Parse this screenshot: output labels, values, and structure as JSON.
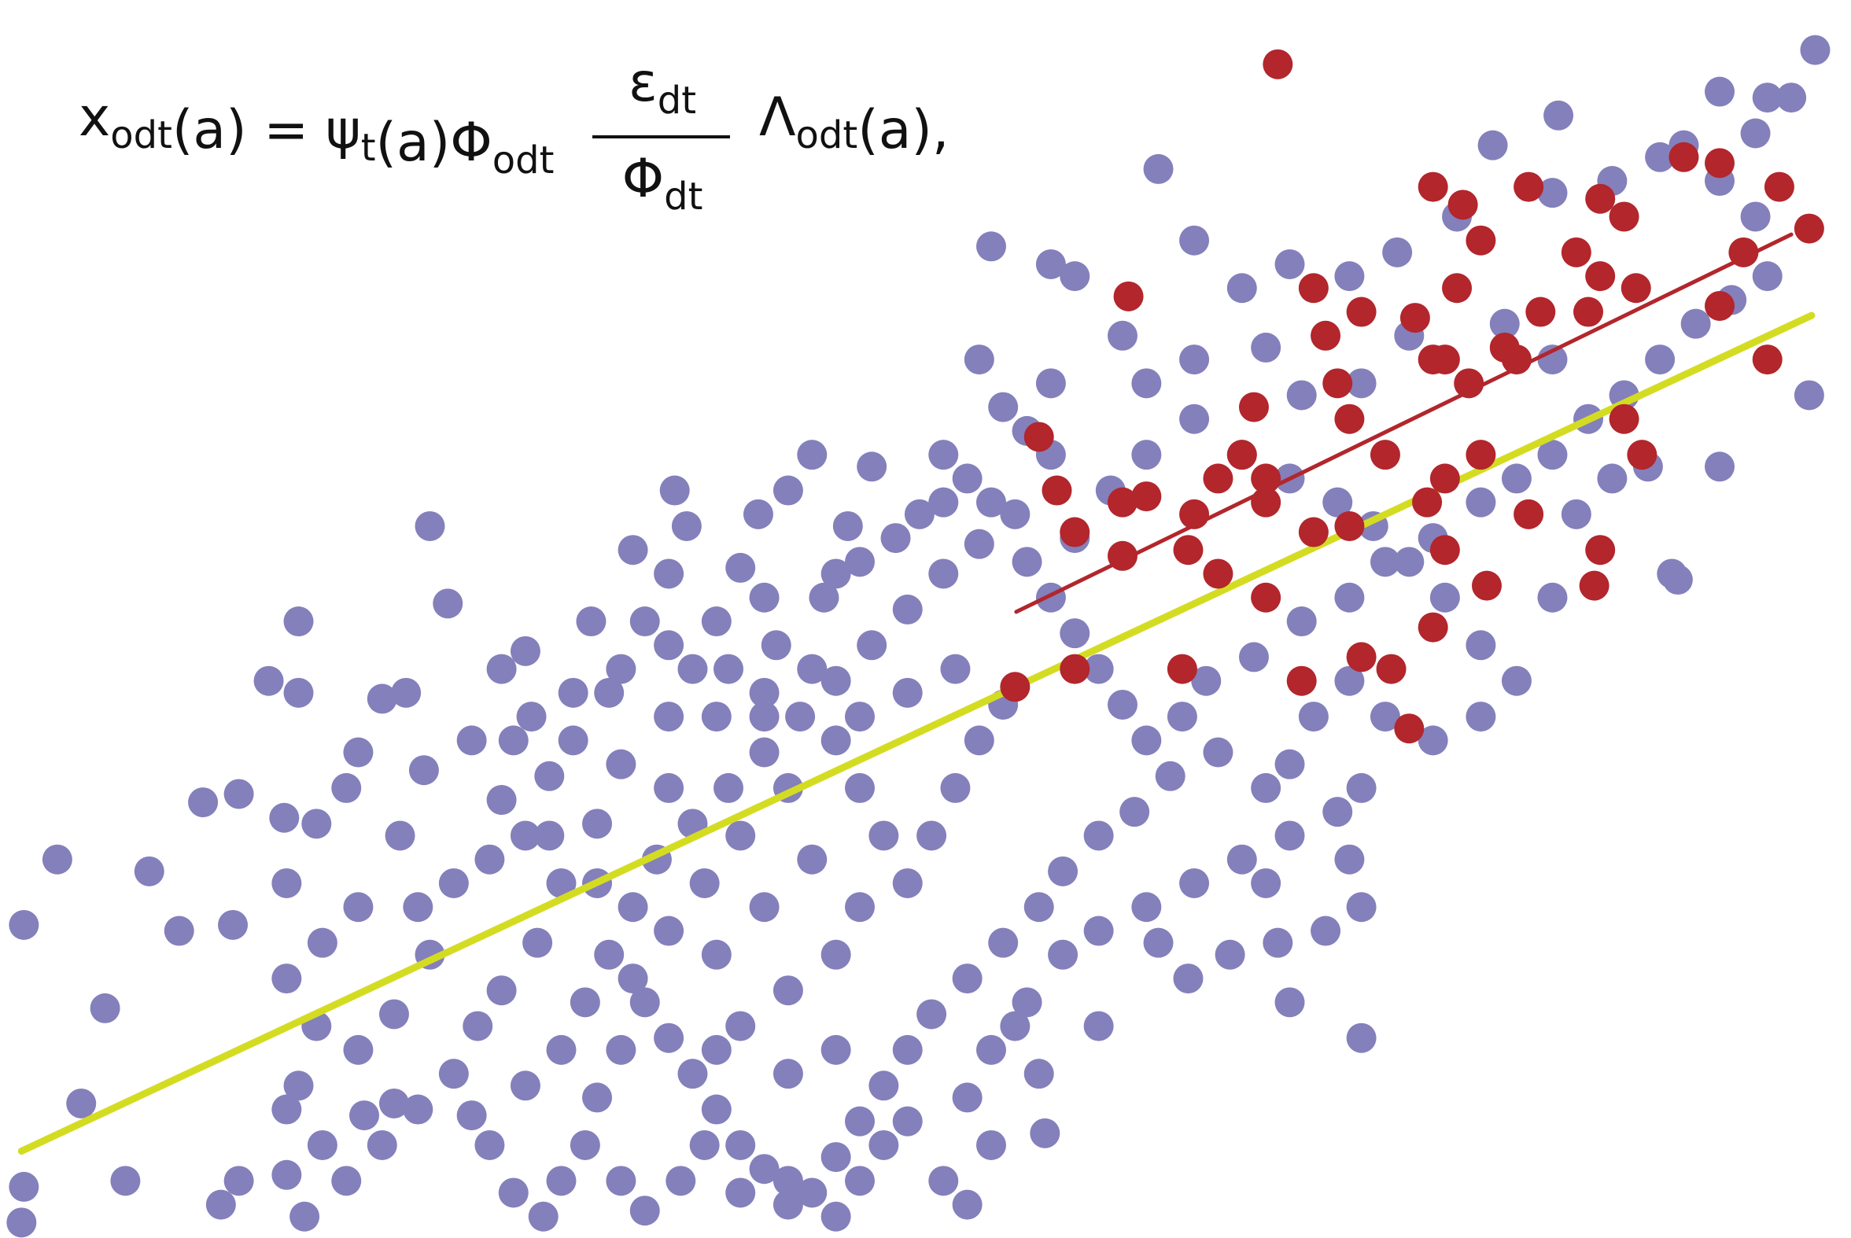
{
  "chart_data": {
    "type": "scatter",
    "formula": {
      "left": [
        {
          "text": "x",
          "sub": "odt"
        },
        {
          "text": "(a) = ψ",
          "sub": "t"
        },
        {
          "text": "(a)Φ",
          "sub": "odt"
        }
      ],
      "numerator": {
        "text": "ε",
        "sub": "dt"
      },
      "denominator": {
        "text": "Φ",
        "sub": "dt"
      },
      "right": [
        {
          "text": "Λ",
          "sub": "odt"
        },
        {
          "text": "(a),"
        }
      ]
    },
    "xlim": [
      0,
      155
    ],
    "ylim": [
      0,
      104
    ],
    "series": [
      {
        "color": "#8480bb",
        "x": [
          4.8,
          2.0,
          8.8,
          6.8,
          2.0,
          1.8,
          10.5,
          12.5,
          15.0,
          17.0,
          20.0,
          22.5,
          25.0,
          24.0,
          19.5,
          25.0,
          23.8,
          26.5,
          30.0,
          32.0,
          29.0,
          34.0,
          36.0,
          37.5,
          39.5,
          42.0,
          35.5,
          33.5,
          30.0,
          27.0,
          24.0,
          26.5,
          30.0,
          33.0,
          36.0,
          35.0,
          38.0,
          41.0,
          44.0,
          46.0,
          48.0,
          44.5,
          42.0,
          44.0,
          49.5,
          51.0,
          54.0,
          56.5,
          57.5,
          63.5,
          66.0,
          62.0,
          68.0,
          73.0,
          79.0,
          77.0,
          72.0,
          69.0,
          65.0,
          60.0,
          58.0,
          56.0,
          52.0,
          50.0,
          47.0,
          45.0,
          42.0,
          40.0,
          38.0,
          35.0,
          32.0,
          25.0,
          24.0,
          27.0,
          29.0,
          25.5,
          20.0,
          18.5,
          24.0,
          30.5,
          33.0,
          41.0,
          39.5,
          44.0,
          47.0,
          49.0,
          51.0,
          53.0,
          55.0,
          58.0,
          61.0,
          64.0,
          67.0,
          70.0,
          73.0,
          76.0,
          79.0,
          82.0,
          83.0,
          81.0,
          85.0,
          86.0,
          88.0,
          90.0,
          92.0,
          94.0,
          96.0,
          98.0,
          95.0,
          92.0,
          89.0,
          87.0,
          84.0,
          81.0,
          78.0,
          76.0,
          74.0,
          72.0,
          70.0,
          68.0,
          66.0,
          64.0,
          62.0,
          60.0,
          58.0,
          56.0,
          54.0,
          52.0,
          50.0,
          49.0,
          47.0,
          43.0,
          45.5,
          54.0,
          57.0,
          59.0,
          52.0,
          62.0,
          66.0,
          70.0,
          72.0,
          74.0,
          76.0,
          79.0,
          81.0,
          83.0,
          81.0,
          83.0,
          85.0,
          87.5,
          87.0,
          86.0,
          89.0,
          92.0,
          96.0,
          100.0,
          104.0,
          108.0,
          112.0,
          106.0,
          102.0,
          99.0,
          101.0,
          105.0,
          109.0,
          113.0,
          116.0,
          120.0,
          124.0,
          127.0,
          130.0,
          133.0,
          136.0,
          139.0,
          142.0,
          145.0,
          148.0,
          147.0,
          144.0,
          141.0,
          147.0,
          150.0,
          152.0,
          148.0,
          144.0,
          139.0,
          135.0,
          130.0,
          130.5,
          125.0,
          122.0,
          117.0,
          113.0,
          108.0,
          104.0,
          100.0,
          97.0,
          90.0,
          88.0,
          83.0,
          82.0,
          84.0,
          88.0,
          94.0,
          96.0,
          100.0,
          104.0,
          108.0,
          112.0,
          115.0,
          118.0,
          121.0,
          124.0,
          127.0,
          124.0,
          120.0,
          116.0,
          113.0,
          110.0,
          108.0,
          114.0,
          113.0,
          114.0,
          111.0,
          107.0,
          106.0,
          103.0,
          99.5,
          97.0,
          92.0,
          108.0,
          114.0,
          130.0,
          132.0,
          135.0,
          140.0,
          144.0,
          138.0,
          130.0,
          126.0,
          118.0,
          114.0,
          109.0,
          106.0,
          100.0,
          96.0,
          93.0,
          90.0,
          88.0,
          86.0,
          79.0,
          75.0,
          71.0,
          70.0,
          64.0,
          61.0,
          64.0,
          68.0,
          70.0,
          72.0,
          74.0,
          76.0,
          78.0,
          80.0,
          82.0,
          84.0,
          80.0,
          76.0,
          72.0,
          66.0,
          62.0,
          59.0,
          56.0,
          53.0,
          60.0,
          64.0,
          68.0,
          72.0,
          70.0,
          66.0,
          62.0,
          60.0,
          66.0,
          70.0,
          56.0,
          50.0,
          46.0,
          43.0,
          48.0,
          52.0,
          56.0,
          60.0,
          64.0,
          56.0,
          53.0,
          151.5,
          140.5
        ],
        "values": [
          31.8,
          26.3,
          19.3,
          11.3,
          4.3,
          1.3,
          4.8,
          30.8,
          25.8,
          36.6,
          37.3,
          46.8,
          51.8,
          29.8,
          26.3,
          45.8,
          35.3,
          34.8,
          40.8,
          45.3,
          37.8,
          45.8,
          59.8,
          53.3,
          41.8,
          36.8,
          39.3,
          33.8,
          27.8,
          24.8,
          21.8,
          17.8,
          15.8,
          18.8,
          23.8,
          27.8,
          29.8,
          31.8,
          33.8,
          38.8,
          41.8,
          43.8,
          47.8,
          49.3,
          51.8,
          45.8,
          51.8,
          62.8,
          59.8,
          60.8,
          62.8,
          56.3,
          65.8,
          64.8,
          65.8,
          60.8,
          56.8,
          53.8,
          49.8,
          51.8,
          47.8,
          43.8,
          39.8,
          34.8,
          29.8,
          24.8,
          20.8,
          17.8,
          13.8,
          10.8,
          7.8,
          12.8,
          10.8,
          7.8,
          4.8,
          1.8,
          4.8,
          2.8,
          5.3,
          10.3,
          11.3,
          7.8,
          10.3,
          12.8,
          15.8,
          19.8,
          23.8,
          27.8,
          31.8,
          34.8,
          37.8,
          40.8,
          43.8,
          46.8,
          49.8,
          52.8,
          55.8,
          58.3,
          61.8,
          63.8,
          60.8,
          56.8,
          53.8,
          50.8,
          47.8,
          44.8,
          41.8,
          38.8,
          35.8,
          33.8,
          30.8,
          27.8,
          24.8,
          21.8,
          18.8,
          15.8,
          12.8,
          9.8,
          6.8,
          3.8,
          4.8,
          5.8,
          7.8,
          10.8,
          13.8,
          16.8,
          19.8,
          15.8,
          11.8,
          7.8,
          4.8,
          3.8,
          1.8,
          2.3,
          4.8,
          7.8,
          4.8,
          3.8,
          2.8,
          1.8,
          4.8,
          7.8,
          9.8,
          4.8,
          2.8,
          7.8,
          11.8,
          15.8,
          17.8,
          8.8,
          13.8,
          19.8,
          23.8,
          25.8,
          27.8,
          29.8,
          31.8,
          33.8,
          35.8,
          37.8,
          40.8,
          43.8,
          46.8,
          48.8,
          51.8,
          53.8,
          56.8,
          58.8,
          61.8,
          63.8,
          65.8,
          68.8,
          70.8,
          73.8,
          76.8,
          78.8,
          80.8,
          85.8,
          88.8,
          91.8,
          92.8,
          95.8,
          99.8,
          95.8,
          96.3,
          90.8,
          88.8,
          87.8,
          94.3,
          91.8,
          85.8,
          82.8,
          80.8,
          81.8,
          79.8,
          83.8,
          89.8,
          80.8,
          81.8,
          83.3,
          73.8,
          69.8,
          71.8,
          75.8,
          71.8,
          68.8,
          65.8,
          63.8,
          61.8,
          59.8,
          56.8,
          53.8,
          49.8,
          46.8,
          43.8,
          41.8,
          43.8,
          46.8,
          43.8,
          39.8,
          37.8,
          31.8,
          27.8,
          25.8,
          24.8,
          29.8,
          23.8,
          21.8,
          24.8,
          17.8,
          19.8,
          16.8,
          53.8,
          60.8,
          63.8,
          55.8,
          64.8,
          64.8,
          73.8,
          76.8,
          75.8,
          71.8,
          70.8,
          74.8,
          73.8,
          65.8,
          62.8,
          58.8,
          65.8,
          67.8,
          61.8,
          58.8,
          59.8,
          55.8,
          53.8,
          47.8,
          45.8,
          47.8,
          41.8,
          37.8,
          33.8,
          29.8,
          33.8,
          37.8,
          41.8,
          44.8,
          47.8,
          45.8,
          43.8,
          37.8,
          33.8,
          29.8,
          25.8,
          21.8,
          23.8,
          27.8,
          31.8,
          27.8,
          23.8,
          20.8,
          17.8,
          15.8,
          13.8,
          15.8,
          37.8,
          29.8,
          33.8,
          41.8,
          45.8,
          47.8,
          49.8,
          43.8,
          43.8,
          55.8,
          57.8,
          70.8,
          55.3
        ]
      },
      {
        "color": "#b2262c",
        "x": [
          107.0,
          120.0,
          122.5,
          128.0,
          134.0,
          136.0,
          141.0,
          144.0,
          149.0,
          151.5,
          146.0,
          144.0,
          148.0,
          132.0,
          134.0,
          137.0,
          133.0,
          136.0,
          137.5,
          110.0,
          122.0,
          118.5,
          114.0,
          111.0,
          112.0,
          120.0,
          126.0,
          123.0,
          124.0,
          129.0,
          127.0,
          94.5,
          105.0,
          113.0,
          104.0,
          102.0,
          106.0,
          100.0,
          87.0,
          88.5,
          94.0,
          96.0,
          90.0,
          94.0,
          99.5,
          102.0,
          106.0,
          110.0,
          113.0,
          116.0,
          119.5,
          121.0,
          124.0,
          128.0,
          121.0,
          124.5,
          120.0,
          114.0,
          116.5,
          118.0,
          109.0,
          99.0,
          90.0,
          85.0,
          134.0,
          133.5,
          106.0,
          121.0
        ],
        "values": [
          98.6,
          88.3,
          86.8,
          88.3,
          87.3,
          85.8,
          90.8,
          90.3,
          88.3,
          84.8,
          82.8,
          78.3,
          73.8,
          82.8,
          80.8,
          79.8,
          77.8,
          68.8,
          65.8,
          79.8,
          79.8,
          77.3,
          77.8,
          75.8,
          71.8,
          73.8,
          74.8,
          71.8,
          83.8,
          77.8,
          73.8,
          79.1,
          69.8,
          68.8,
          65.8,
          63.8,
          61.8,
          60.8,
          67.3,
          62.8,
          61.8,
          62.3,
          59.3,
          57.3,
          57.8,
          55.8,
          53.8,
          59.3,
          59.8,
          65.8,
          61.8,
          63.8,
          65.8,
          60.8,
          57.8,
          54.8,
          51.3,
          48.8,
          47.8,
          42.8,
          46.8,
          47.8,
          47.8,
          46.3,
          57.8,
          54.8,
          63.8,
          73.8
        ]
      }
    ],
    "fit_lines": [
      {
        "color": "#d4dc22",
        "x": [
          1.8,
          151.7
        ],
        "values": [
          7.3,
          77.5
        ]
      },
      {
        "color": "#b2262c",
        "x": [
          85.1,
          150.0
        ],
        "values": [
          52.6,
          84.3
        ]
      }
    ]
  }
}
